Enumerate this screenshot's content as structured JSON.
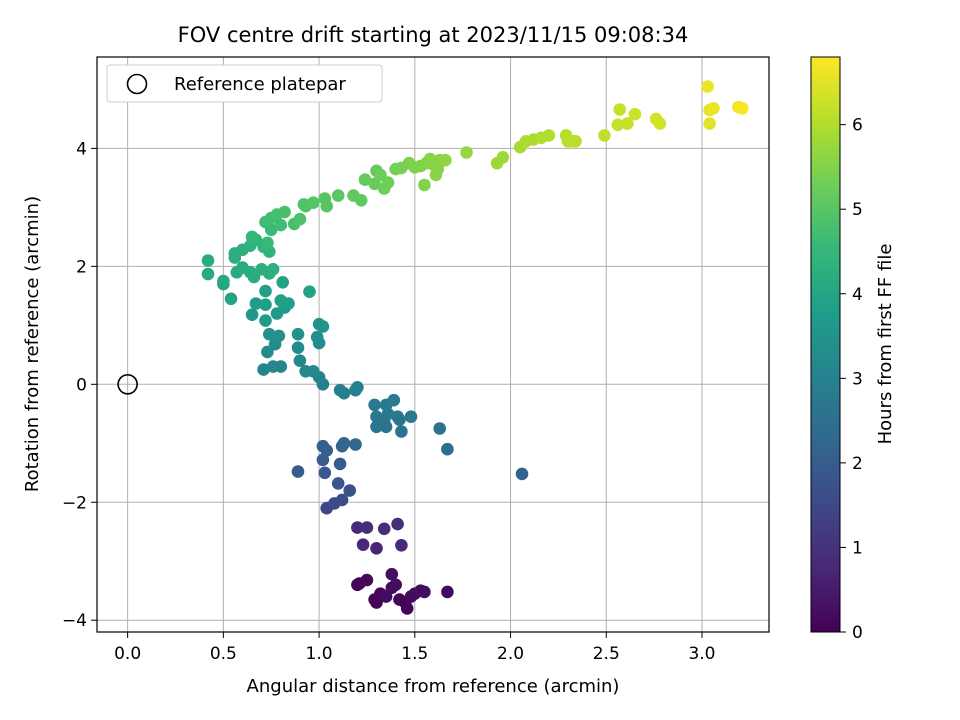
{
  "chart_data": {
    "type": "scatter",
    "title": "FOV centre drift starting at 2023/11/15 09:08:34",
    "xlabel": "Angular distance from reference (arcmin)",
    "ylabel": "Rotation from reference (arcmin)",
    "xlim": [
      -0.16,
      3.35
    ],
    "ylim": [
      -4.2,
      5.55
    ],
    "xticks": [
      0.0,
      0.5,
      1.0,
      1.5,
      2.0,
      2.5,
      3.0
    ],
    "xtick_labels": [
      "0.0",
      "0.5",
      "1.0",
      "1.5",
      "2.0",
      "2.5",
      "3.0"
    ],
    "yticks": [
      -4,
      -2,
      0,
      2,
      4
    ],
    "ytick_labels": [
      "−4",
      "−2",
      "0",
      "2",
      "4"
    ],
    "grid": true,
    "legend": {
      "placement": "top-left",
      "entries": [
        "Reference platepar"
      ]
    },
    "reference_point": {
      "x": 0.0,
      "y": 0.0
    },
    "colorbar": {
      "label": "Hours from first FF file",
      "colormap": "viridis",
      "range": [
        0,
        6.8
      ],
      "ticks": [
        0,
        1,
        2,
        3,
        4,
        5,
        6
      ],
      "tick_labels": [
        "0",
        "1",
        "2",
        "3",
        "4",
        "5",
        "6"
      ],
      "stops": [
        "#440154",
        "#482878",
        "#3e4989",
        "#31688e",
        "#26828e",
        "#1f9e89",
        "#35b779",
        "#6ece58",
        "#b5de2b",
        "#fde725"
      ]
    },
    "series": [
      {
        "points": [
          [
            1.21,
            -3.38,
            0.1
          ],
          [
            1.25,
            -3.32,
            0.15
          ],
          [
            1.29,
            -3.65,
            0.1
          ],
          [
            1.3,
            -3.7,
            0.05
          ],
          [
            1.32,
            -3.55,
            0.1
          ],
          [
            1.35,
            -3.6,
            0.2
          ],
          [
            1.38,
            -3.45,
            0.25
          ],
          [
            1.38,
            -3.22,
            0.3
          ],
          [
            1.4,
            -3.4,
            0.2
          ],
          [
            1.42,
            -3.65,
            0.1
          ],
          [
            1.45,
            -3.7,
            0.05
          ],
          [
            1.46,
            -3.8,
            0.1
          ],
          [
            1.48,
            -3.6,
            0.15
          ],
          [
            1.5,
            -3.55,
            0.2
          ],
          [
            1.53,
            -3.5,
            0.25
          ],
          [
            1.55,
            -3.52,
            0.2
          ],
          [
            1.67,
            -3.52,
            0.15
          ],
          [
            1.2,
            -3.4,
            0.1
          ],
          [
            1.2,
            -2.43,
            0.8
          ],
          [
            1.25,
            -2.43,
            0.85
          ],
          [
            1.23,
            -2.72,
            0.75
          ],
          [
            1.3,
            -2.78,
            0.7
          ],
          [
            1.34,
            -2.45,
            0.9
          ],
          [
            1.41,
            -2.37,
            0.95
          ],
          [
            1.43,
            -2.73,
            0.8
          ],
          [
            1.04,
            -2.1,
            1.4
          ],
          [
            1.08,
            -2.02,
            1.5
          ],
          [
            1.12,
            -1.96,
            1.6
          ],
          [
            1.16,
            -1.8,
            1.7
          ],
          [
            1.1,
            -1.68,
            1.8
          ],
          [
            1.03,
            -1.5,
            1.9
          ],
          [
            1.02,
            -1.28,
            2.0
          ],
          [
            1.04,
            -1.12,
            2.05
          ],
          [
            1.02,
            -1.05,
            2.1
          ],
          [
            1.11,
            -1.35,
            1.95
          ],
          [
            1.12,
            -1.05,
            2.2
          ],
          [
            1.13,
            -1.0,
            2.25
          ],
          [
            1.19,
            -1.02,
            2.3
          ],
          [
            0.89,
            -1.48,
            2.0
          ],
          [
            2.06,
            -1.52,
            2.1
          ],
          [
            1.67,
            -1.1,
            2.4
          ],
          [
            1.63,
            -0.75,
            2.6
          ],
          [
            1.29,
            -0.35,
            2.8
          ],
          [
            1.3,
            -0.55,
            2.7
          ],
          [
            1.3,
            -0.72,
            2.65
          ],
          [
            1.34,
            -0.62,
            2.7
          ],
          [
            1.35,
            -0.72,
            2.6
          ],
          [
            1.36,
            -0.5,
            2.75
          ],
          [
            1.35,
            -0.35,
            2.8
          ],
          [
            1.39,
            -0.27,
            2.85
          ],
          [
            1.41,
            -0.55,
            2.7
          ],
          [
            1.43,
            -0.8,
            2.6
          ],
          [
            1.48,
            -0.55,
            2.7
          ],
          [
            1.42,
            -0.6,
            2.65
          ],
          [
            1.13,
            -0.15,
            2.9
          ],
          [
            1.11,
            -0.1,
            2.95
          ],
          [
            1.19,
            -0.1,
            2.9
          ],
          [
            1.2,
            -0.05,
            3.0
          ],
          [
            1.02,
            0.0,
            3.0
          ],
          [
            1.0,
            0.12,
            3.05
          ],
          [
            0.71,
            0.25,
            3.1
          ],
          [
            0.76,
            0.3,
            3.15
          ],
          [
            0.8,
            0.3,
            3.1
          ],
          [
            0.9,
            0.4,
            3.2
          ],
          [
            0.93,
            0.22,
            3.15
          ],
          [
            0.97,
            0.22,
            3.2
          ],
          [
            0.73,
            0.55,
            3.25
          ],
          [
            0.77,
            0.68,
            3.3
          ],
          [
            0.89,
            0.62,
            3.3
          ],
          [
            0.99,
            0.8,
            3.35
          ],
          [
            1.0,
            0.7,
            3.3
          ],
          [
            0.74,
            0.85,
            3.4
          ],
          [
            0.79,
            0.82,
            3.4
          ],
          [
            0.89,
            0.85,
            3.45
          ],
          [
            1.0,
            1.02,
            3.5
          ],
          [
            1.02,
            0.98,
            3.5
          ],
          [
            0.65,
            1.18,
            3.6
          ],
          [
            0.72,
            1.08,
            3.7
          ],
          [
            0.67,
            1.37,
            3.75
          ],
          [
            0.72,
            1.35,
            3.8
          ],
          [
            0.78,
            1.2,
            3.7
          ],
          [
            0.82,
            1.3,
            3.75
          ],
          [
            0.84,
            1.37,
            3.8
          ],
          [
            0.72,
            1.58,
            3.85
          ],
          [
            0.8,
            1.42,
            3.8
          ],
          [
            0.81,
            1.73,
            3.9
          ],
          [
            0.95,
            1.57,
            3.9
          ],
          [
            0.54,
            1.45,
            3.95
          ],
          [
            0.5,
            1.7,
            4.0
          ],
          [
            0.5,
            1.75,
            4.05
          ],
          [
            0.42,
            1.87,
            4.1
          ],
          [
            0.42,
            2.1,
            4.15
          ],
          [
            0.57,
            1.9,
            4.1
          ],
          [
            0.6,
            1.98,
            4.15
          ],
          [
            0.64,
            1.9,
            4.2
          ],
          [
            0.66,
            1.82,
            4.2
          ],
          [
            0.7,
            1.95,
            4.25
          ],
          [
            0.74,
            1.88,
            4.25
          ],
          [
            0.76,
            1.95,
            4.3
          ],
          [
            0.56,
            2.15,
            4.2
          ],
          [
            0.56,
            2.22,
            4.25
          ],
          [
            0.6,
            2.28,
            4.3
          ],
          [
            0.64,
            2.35,
            4.35
          ],
          [
            0.67,
            2.45,
            4.4
          ],
          [
            0.71,
            2.33,
            4.45
          ],
          [
            0.74,
            2.25,
            4.4
          ],
          [
            0.65,
            2.5,
            4.5
          ],
          [
            0.73,
            2.4,
            4.55
          ],
          [
            0.75,
            2.62,
            4.6
          ],
          [
            0.72,
            2.75,
            4.65
          ],
          [
            0.75,
            2.82,
            4.7
          ],
          [
            0.78,
            2.88,
            4.75
          ],
          [
            0.8,
            2.7,
            4.7
          ],
          [
            0.82,
            2.92,
            4.8
          ],
          [
            0.87,
            2.72,
            4.8
          ],
          [
            0.9,
            2.8,
            4.85
          ],
          [
            0.93,
            3.02,
            4.9
          ],
          [
            0.92,
            3.05,
            4.9
          ],
          [
            0.97,
            3.08,
            4.95
          ],
          [
            1.03,
            3.15,
            5.0
          ],
          [
            1.04,
            3.02,
            5.0
          ],
          [
            1.1,
            3.2,
            5.05
          ],
          [
            1.18,
            3.2,
            5.1
          ],
          [
            1.22,
            3.12,
            5.1
          ],
          [
            1.24,
            3.47,
            5.15
          ],
          [
            1.3,
            3.62,
            5.2
          ],
          [
            1.29,
            3.4,
            5.2
          ],
          [
            1.32,
            3.55,
            5.25
          ],
          [
            1.34,
            3.32,
            5.3
          ],
          [
            1.36,
            3.42,
            5.3
          ],
          [
            1.4,
            3.65,
            5.35
          ],
          [
            1.43,
            3.67,
            5.35
          ],
          [
            1.47,
            3.75,
            5.4
          ],
          [
            1.5,
            3.68,
            5.45
          ],
          [
            1.53,
            3.7,
            5.45
          ],
          [
            1.55,
            3.38,
            5.5
          ],
          [
            1.56,
            3.75,
            5.5
          ],
          [
            1.58,
            3.82,
            5.55
          ],
          [
            1.6,
            3.72,
            5.55
          ],
          [
            1.61,
            3.55,
            5.6
          ],
          [
            1.63,
            3.8,
            5.6
          ],
          [
            1.62,
            3.65,
            5.55
          ],
          [
            1.66,
            3.8,
            5.65
          ],
          [
            1.77,
            3.93,
            5.7
          ],
          [
            1.93,
            3.75,
            5.8
          ],
          [
            1.96,
            3.85,
            5.8
          ],
          [
            2.05,
            4.02,
            5.9
          ],
          [
            2.08,
            4.12,
            5.95
          ],
          [
            2.12,
            4.15,
            5.95
          ],
          [
            2.16,
            4.18,
            6.0
          ],
          [
            2.2,
            4.22,
            6.0
          ],
          [
            2.29,
            4.22,
            6.05
          ],
          [
            2.3,
            4.12,
            6.05
          ],
          [
            2.33,
            4.12,
            6.1
          ],
          [
            2.34,
            4.12,
            6.1
          ],
          [
            2.49,
            4.22,
            6.15
          ],
          [
            2.56,
            4.4,
            6.2
          ],
          [
            2.57,
            4.66,
            6.25
          ],
          [
            2.61,
            4.42,
            6.25
          ],
          [
            2.65,
            4.58,
            6.3
          ],
          [
            2.76,
            4.5,
            6.35
          ],
          [
            2.78,
            4.42,
            6.35
          ],
          [
            3.03,
            5.05,
            6.6
          ],
          [
            3.04,
            4.65,
            6.55
          ],
          [
            3.04,
            4.42,
            6.5
          ],
          [
            3.06,
            4.68,
            6.6
          ],
          [
            3.19,
            4.7,
            6.7
          ],
          [
            3.21,
            4.68,
            6.75
          ]
        ]
      }
    ]
  }
}
